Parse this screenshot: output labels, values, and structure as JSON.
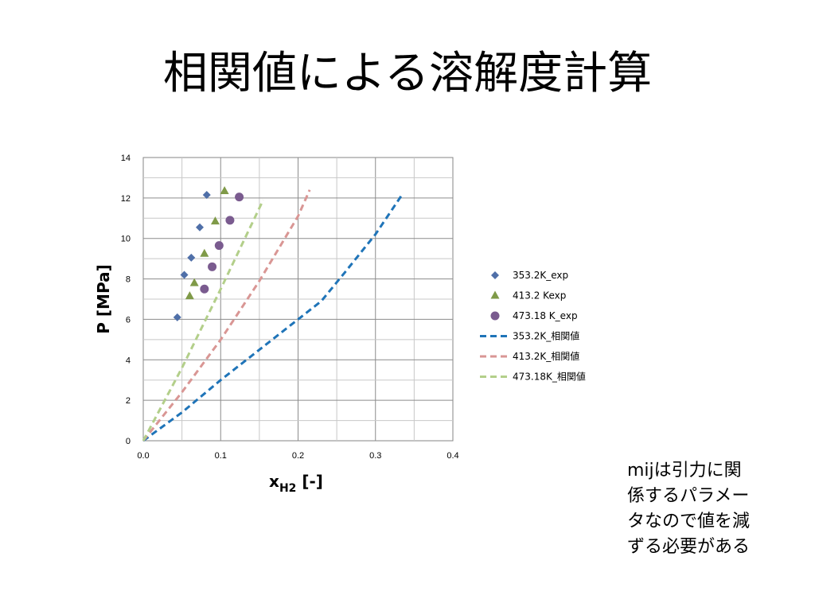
{
  "slide": {
    "title": "相関値による溶解度計算"
  },
  "note": {
    "lines": [
      "mijは引力に関",
      "係するパラメー",
      "タなので値を減",
      "ずる必要がある"
    ]
  },
  "chart_data": {
    "type": "scatter",
    "xlabel_main": "x",
    "xlabel_sub": "H2",
    "xlabel_tail": " [-]",
    "ylabel": "P [MPa]",
    "xlim": [
      0,
      0.4
    ],
    "ylim": [
      0,
      14
    ],
    "x_ticks": [
      "0.0",
      "0.1",
      "0.2",
      "0.3",
      "0.4"
    ],
    "y_ticks": [
      "0",
      "2",
      "4",
      "6",
      "8",
      "10",
      "12",
      "14"
    ],
    "grid": true,
    "legend_position": "right",
    "series": [
      {
        "name": "353.2K_exp",
        "kind": "scatter",
        "marker": "diamond",
        "color": "#4f6fa8",
        "x": [
          0.044,
          0.053,
          0.062,
          0.073,
          0.082
        ],
        "y": [
          6.1,
          8.2,
          9.05,
          10.55,
          12.15
        ]
      },
      {
        "name": "413.2 Kexp",
        "kind": "scatter",
        "marker": "triangle",
        "color": "#7f9a48",
        "x": [
          0.06,
          0.066,
          0.079,
          0.093,
          0.105
        ],
        "y": [
          7.15,
          7.8,
          9.25,
          10.85,
          12.35
        ]
      },
      {
        "name": "473.18 K_exp",
        "kind": "scatter",
        "marker": "circle",
        "color": "#7a5b8f",
        "x": [
          0.079,
          0.089,
          0.098,
          0.112,
          0.124
        ],
        "y": [
          7.5,
          8.6,
          9.65,
          10.9,
          12.05
        ]
      },
      {
        "name": "353.2K_相関値",
        "kind": "line",
        "color": "#1f74b8",
        "x": [
          0.0,
          0.05,
          0.1,
          0.15,
          0.2,
          0.23,
          0.26,
          0.3,
          0.335
        ],
        "y": [
          0.0,
          1.4,
          3.0,
          4.5,
          6.0,
          6.9,
          8.3,
          10.2,
          12.2
        ]
      },
      {
        "name": "413.2K_相関値",
        "kind": "line",
        "color": "#d99694",
        "x": [
          0.0,
          0.05,
          0.1,
          0.15,
          0.2,
          0.215
        ],
        "y": [
          0.0,
          2.4,
          5.0,
          7.9,
          11.1,
          12.4
        ]
      },
      {
        "name": "473.18K_相関値",
        "kind": "line",
        "color": "#b3cf8a",
        "x": [
          0.0,
          0.05,
          0.1,
          0.155
        ],
        "y": [
          0.0,
          3.6,
          7.5,
          11.9
        ]
      }
    ]
  }
}
